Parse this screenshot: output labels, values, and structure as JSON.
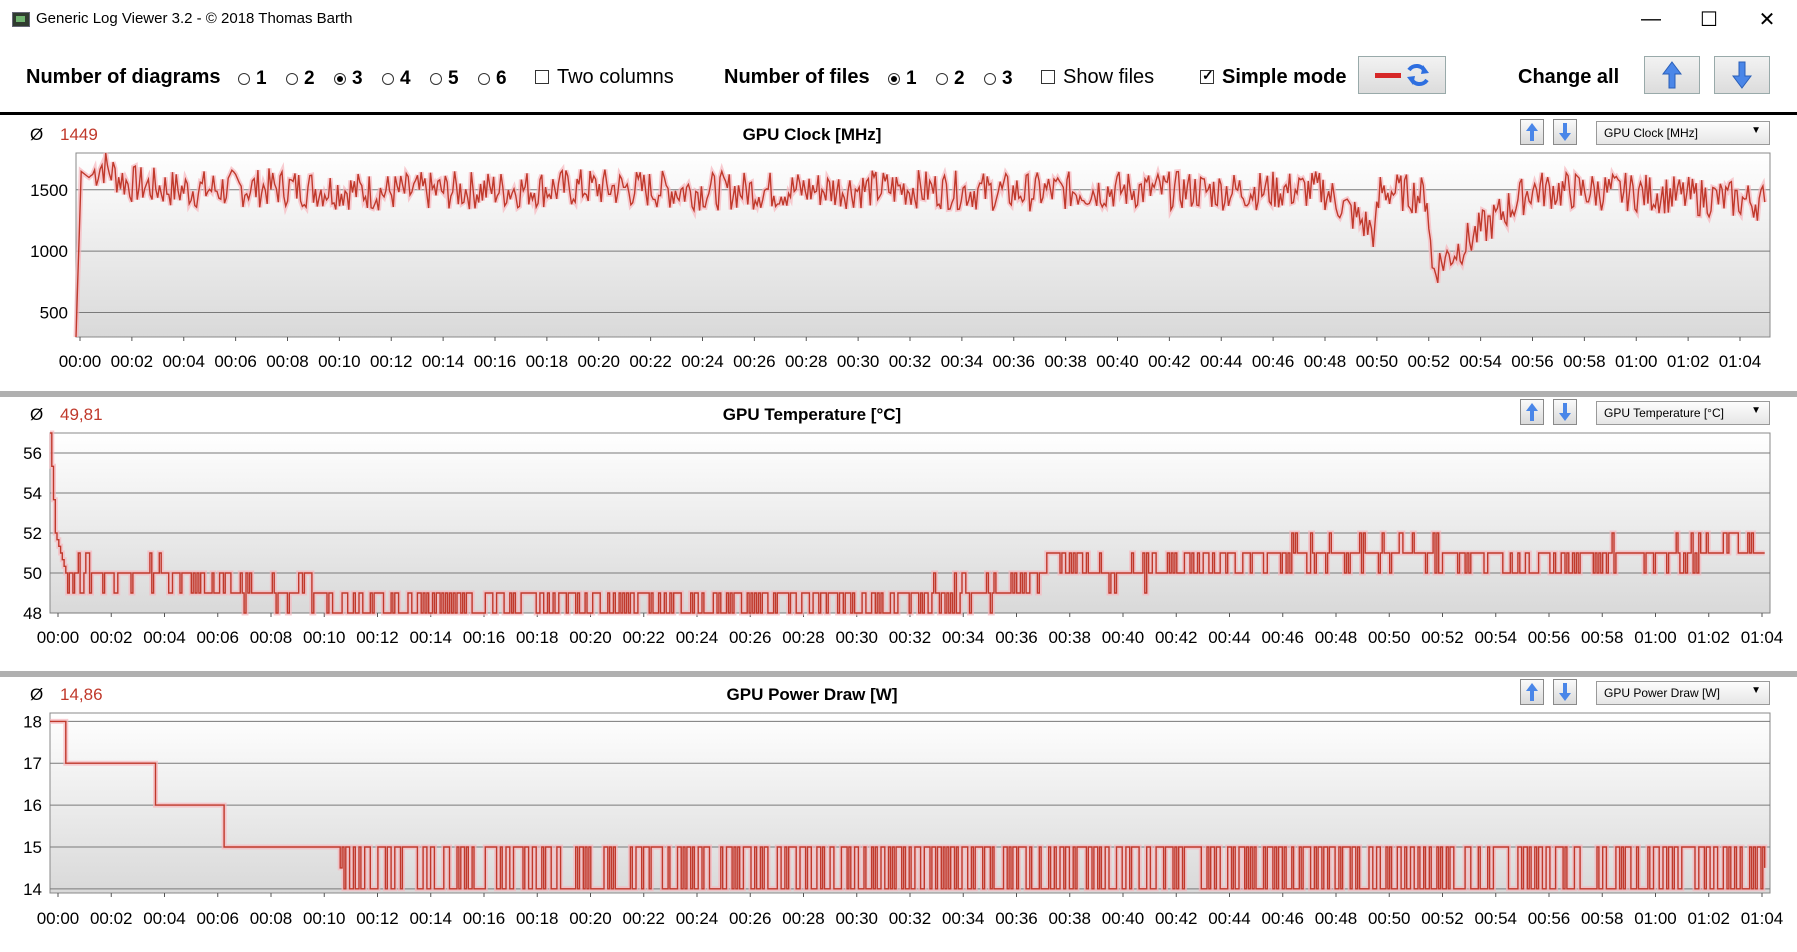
{
  "window": {
    "title": "Generic Log Viewer 3.2 - © 2018 Thomas Barth",
    "minimize": "—",
    "maximize": "☐",
    "close": "✕"
  },
  "toolbar": {
    "num_diagrams_label": "Number of diagrams",
    "diagram_options": [
      "1",
      "2",
      "3",
      "4",
      "5",
      "6"
    ],
    "diagram_selected": "3",
    "two_columns": "Two columns",
    "num_files_label": "Number of files",
    "file_options": [
      "1",
      "2",
      "3"
    ],
    "file_selected": "1",
    "show_files": "Show files",
    "simple_mode": "Simple mode",
    "change_all": "Change all"
  },
  "colors": {
    "series": "#c0392b",
    "arrow": "#3b78e7"
  },
  "icons": {
    "average": "Ø",
    "up": "arrow-up-icon",
    "down": "arrow-down-icon",
    "refresh": "refresh-icon"
  },
  "panels": [
    {
      "title": "GPU Clock [MHz]",
      "avg": "1449",
      "dropdown": "GPU Clock [MHz]"
    },
    {
      "title": "GPU Temperature [°C]",
      "avg": "49,81",
      "dropdown": "GPU Temperature [°C]"
    },
    {
      "title": "GPU Power Draw [W]",
      "avg": "14,86",
      "dropdown": "GPU Power Draw [W]"
    }
  ],
  "chart_data": [
    {
      "type": "line",
      "title": "GPU Clock [MHz]",
      "ylim": [
        300,
        1800
      ],
      "yticks": [
        "500",
        "1000",
        "1500"
      ],
      "yticks_values": [
        500,
        1000,
        1500
      ],
      "xticks": [
        "00:00",
        "00:02",
        "00:04",
        "00:06",
        "00:08",
        "00:10",
        "00:12",
        "00:14",
        "00:16",
        "00:18",
        "00:20",
        "00:22",
        "00:24",
        "00:26",
        "00:28",
        "00:30",
        "00:32",
        "00:34",
        "00:36",
        "00:38",
        "00:40",
        "00:42",
        "00:44",
        "00:46",
        "00:48",
        "00:50",
        "00:52",
        "00:54",
        "00:56",
        "00:58",
        "01:00",
        "01:02",
        "01:04"
      ],
      "x_minutes": [
        0,
        0.2,
        0.5,
        1,
        2,
        4,
        8,
        12,
        16,
        20,
        24,
        28,
        32,
        36,
        40,
        44,
        48,
        50,
        50.2,
        52,
        52.2,
        56,
        60,
        65
      ],
      "y": [
        300,
        1650,
        1600,
        1700,
        1550,
        1500,
        1520,
        1480,
        1500,
        1520,
        1490,
        1500,
        1510,
        1480,
        1500,
        1490,
        1500,
        1150,
        1500,
        1450,
        850,
        1500,
        1480,
        1400
      ],
      "grid": true
    },
    {
      "type": "line",
      "title": "GPU Temperature [°C]",
      "ylim": [
        48,
        57
      ],
      "yticks": [
        "48",
        "50",
        "52",
        "54",
        "56"
      ],
      "yticks_values": [
        48,
        50,
        52,
        54,
        56
      ],
      "xticks": [
        "00:00",
        "00:02",
        "00:04",
        "00:06",
        "00:08",
        "00:10",
        "00:12",
        "00:14",
        "00:16",
        "00:18",
        "00:20",
        "00:22",
        "00:24",
        "00:26",
        "00:28",
        "00:30",
        "00:32",
        "00:34",
        "00:36",
        "00:38",
        "00:40",
        "00:42",
        "00:44",
        "00:46",
        "00:48",
        "00:50",
        "00:52",
        "00:54",
        "00:56",
        "00:58",
        "01:00",
        "01:02",
        "01:04"
      ],
      "x_minutes": [
        0,
        0.2,
        0.4,
        0.6,
        1,
        4,
        8,
        10,
        12,
        20,
        28,
        36,
        37.5,
        38,
        40,
        44,
        48,
        52,
        56,
        60,
        62,
        64,
        65
      ],
      "y": [
        57,
        52,
        51,
        50,
        50,
        50,
        49,
        49,
        48.5,
        48.5,
        48.5,
        49,
        50,
        51,
        50,
        50.5,
        51,
        51,
        50.5,
        51,
        51,
        51.5,
        51
      ],
      "grid": true
    },
    {
      "type": "line",
      "title": "GPU Power Draw [W]",
      "ylim": [
        13.9,
        18.2
      ],
      "yticks": [
        "14",
        "15",
        "16",
        "17",
        "18"
      ],
      "yticks_values": [
        14,
        15,
        16,
        17,
        18
      ],
      "xticks": [
        "00:00",
        "00:02",
        "00:04",
        "00:06",
        "00:08",
        "00:10",
        "00:12",
        "00:14",
        "00:16",
        "00:18",
        "00:20",
        "00:22",
        "00:24",
        "00:26",
        "00:28",
        "00:30",
        "00:32",
        "00:34",
        "00:36",
        "00:38",
        "00:40",
        "00:42",
        "00:44",
        "00:46",
        "00:48",
        "00:50",
        "00:52",
        "00:54",
        "00:56",
        "00:58",
        "01:00",
        "01:02",
        "01:04"
      ],
      "x_minutes": [
        0,
        0.5,
        0.6,
        3.9,
        4.0,
        6.5,
        6.6,
        10.9,
        11,
        20,
        30,
        40,
        47,
        48.5,
        55,
        65
      ],
      "y": [
        18,
        18,
        17,
        17,
        16,
        16,
        15,
        15,
        14.5,
        14.5,
        14.5,
        14.5,
        15,
        14.5,
        14.5,
        14.5
      ],
      "grid": true
    }
  ]
}
